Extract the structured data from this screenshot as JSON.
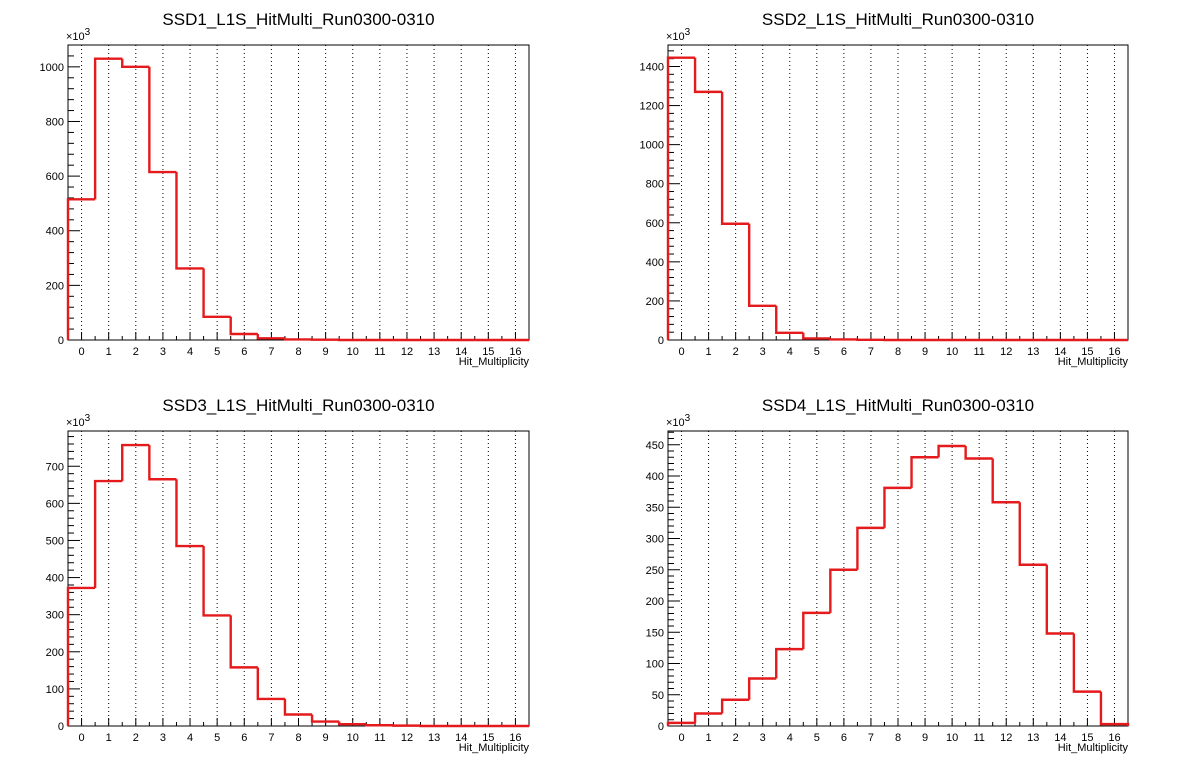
{
  "colors": {
    "line": "#e41a1c",
    "axis": "#000000",
    "grid": "#000000"
  },
  "chart_data": [
    {
      "type": "bar",
      "title": "SSD1_L1S_HitMulti_Run0300-0310",
      "xlabel": "Hit_Multiplicity",
      "ylabel": "",
      "y_multiplier": "×10",
      "y_multiplier_exp": "3",
      "grid": "vertical dotted",
      "xlim": [
        -0.5,
        16.5
      ],
      "ylim": [
        0,
        1080
      ],
      "yticks": [
        0,
        200,
        400,
        600,
        800,
        1000
      ],
      "x": [
        0,
        1,
        2,
        3,
        4,
        5,
        6,
        7,
        8,
        9,
        10,
        11,
        12,
        13,
        14,
        15,
        16
      ],
      "values": [
        515,
        1030,
        1000,
        615,
        262,
        85,
        22,
        6,
        2,
        1,
        0,
        0,
        0,
        0,
        0,
        0,
        0
      ]
    },
    {
      "type": "bar",
      "title": "SSD2_L1S_HitMulti_Run0300-0310",
      "xlabel": "Hit_Multiplicity",
      "ylabel": "",
      "y_multiplier": "×10",
      "y_multiplier_exp": "3",
      "grid": "vertical dotted",
      "xlim": [
        -0.5,
        16.5
      ],
      "ylim": [
        0,
        1510
      ],
      "yticks": [
        0,
        200,
        400,
        600,
        800,
        1000,
        1200,
        1400
      ],
      "x": [
        0,
        1,
        2,
        3,
        4,
        5,
        6,
        7,
        8,
        9,
        10,
        11,
        12,
        13,
        14,
        15,
        16
      ],
      "values": [
        1445,
        1270,
        595,
        175,
        37,
        8,
        3,
        1,
        0,
        0,
        0,
        0,
        0,
        0,
        0,
        0,
        0
      ]
    },
    {
      "type": "bar",
      "title": "SSD3_L1S_HitMulti_Run0300-0310",
      "xlabel": "Hit_Multiplicity",
      "ylabel": "",
      "y_multiplier": "×10",
      "y_multiplier_exp": "3",
      "grid": "vertical dotted",
      "xlim": [
        -0.5,
        16.5
      ],
      "ylim": [
        0,
        795
      ],
      "yticks": [
        0,
        100,
        200,
        300,
        400,
        500,
        600,
        700
      ],
      "x": [
        0,
        1,
        2,
        3,
        4,
        5,
        6,
        7,
        8,
        9,
        10,
        11,
        12,
        13,
        14,
        15,
        16
      ],
      "values": [
        372,
        660,
        757,
        665,
        485,
        298,
        158,
        73,
        31,
        12,
        5,
        2,
        1,
        0,
        0,
        0,
        0
      ]
    },
    {
      "type": "bar",
      "title": "SSD4_L1S_HitMulti_Run0300-0310",
      "xlabel": "Hit_Multiplicity",
      "ylabel": "",
      "y_multiplier": "×10",
      "y_multiplier_exp": "3",
      "grid": "vertical dotted",
      "xlim": [
        -0.5,
        16.5
      ],
      "ylim": [
        0,
        472
      ],
      "yticks": [
        0,
        50,
        100,
        150,
        200,
        250,
        300,
        350,
        400,
        450
      ],
      "x": [
        0,
        1,
        2,
        3,
        4,
        5,
        6,
        7,
        8,
        9,
        10,
        11,
        12,
        13,
        14,
        15,
        16
      ],
      "values": [
        5,
        20,
        42,
        76,
        123,
        181,
        250,
        317,
        381,
        430,
        448,
        428,
        358,
        258,
        148,
        55,
        3
      ]
    }
  ]
}
